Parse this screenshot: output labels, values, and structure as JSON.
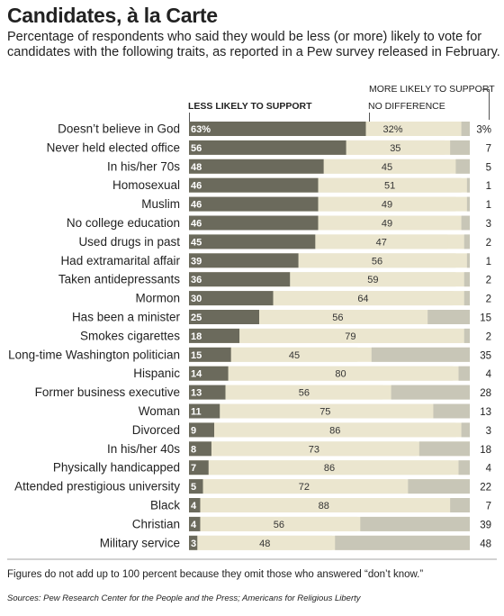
{
  "title": "Candidates, à la Carte",
  "subtitle": "Percentage of respondents who said they would be less (or more) likely to vote for candidates with the following traits, as reported in a Pew survey released in February.",
  "footnote": "Figures do not add up to 100 percent because they omit those who answered “don’t know.”",
  "sources": "Sources: Pew Research Center for the People and the Press; Americans for Religious Liberty",
  "colors": {
    "less": "#6b6a5c",
    "nodiff": "#ebe6cf",
    "more": "#c8c6b7"
  },
  "chart_data": {
    "type": "bar",
    "stacked": true,
    "orientation": "horizontal",
    "xlim": [
      0,
      100
    ],
    "legend": {
      "less": "LESS LIKELY TO SUPPORT",
      "nodiff": "NO DIFFERENCE",
      "more": "MORE LIKELY TO SUPPORT"
    },
    "rows": [
      {
        "label": "Doesn’t believe in God",
        "less": 63,
        "nodiff": 32,
        "more": 3,
        "less_label": "63%",
        "nodiff_label": "32%",
        "more_label": "3%"
      },
      {
        "label": "Never held elected office",
        "less": 56,
        "nodiff": 35,
        "more": 7,
        "less_label": "56",
        "nodiff_label": "35",
        "more_label": "7"
      },
      {
        "label": "In his/her 70s",
        "less": 48,
        "nodiff": 45,
        "more": 5,
        "less_label": "48",
        "nodiff_label": "45",
        "more_label": "5"
      },
      {
        "label": "Homosexual",
        "less": 46,
        "nodiff": 51,
        "more": 1,
        "less_label": "46",
        "nodiff_label": "51",
        "more_label": "1"
      },
      {
        "label": "Muslim",
        "less": 46,
        "nodiff": 49,
        "more": 1,
        "less_label": "46",
        "nodiff_label": "49",
        "more_label": "1"
      },
      {
        "label": "No college education",
        "less": 46,
        "nodiff": 49,
        "more": 3,
        "less_label": "46",
        "nodiff_label": "49",
        "more_label": "3"
      },
      {
        "label": "Used drugs in past",
        "less": 45,
        "nodiff": 47,
        "more": 2,
        "less_label": "45",
        "nodiff_label": "47",
        "more_label": "2"
      },
      {
        "label": "Had extramarital affair",
        "less": 39,
        "nodiff": 56,
        "more": 1,
        "less_label": "39",
        "nodiff_label": "56",
        "more_label": "1"
      },
      {
        "label": "Taken antidepressants",
        "less": 36,
        "nodiff": 59,
        "more": 2,
        "less_label": "36",
        "nodiff_label": "59",
        "more_label": "2"
      },
      {
        "label": "Mormon",
        "less": 30,
        "nodiff": 64,
        "more": 2,
        "less_label": "30",
        "nodiff_label": "64",
        "more_label": "2"
      },
      {
        "label": "Has been a minister",
        "less": 25,
        "nodiff": 56,
        "more": 15,
        "less_label": "25",
        "nodiff_label": "56",
        "more_label": "15"
      },
      {
        "label": "Smokes cigarettes",
        "less": 18,
        "nodiff": 79,
        "more": 2,
        "less_label": "18",
        "nodiff_label": "79",
        "more_label": "2"
      },
      {
        "label": "Long-time Washington politician",
        "less": 15,
        "nodiff": 45,
        "more": 35,
        "less_label": "15",
        "nodiff_label": "45",
        "more_label": "35"
      },
      {
        "label": "Hispanic",
        "less": 14,
        "nodiff": 80,
        "more": 4,
        "less_label": "14",
        "nodiff_label": "80",
        "more_label": "4"
      },
      {
        "label": "Former business executive",
        "less": 13,
        "nodiff": 56,
        "more": 28,
        "less_label": "13",
        "nodiff_label": "56",
        "more_label": "28"
      },
      {
        "label": "Woman",
        "less": 11,
        "nodiff": 75,
        "more": 13,
        "less_label": "11",
        "nodiff_label": "75",
        "more_label": "13"
      },
      {
        "label": "Divorced",
        "less": 9,
        "nodiff": 86,
        "more": 3,
        "less_label": "9",
        "nodiff_label": "86",
        "more_label": "3"
      },
      {
        "label": "In his/her 40s",
        "less": 8,
        "nodiff": 73,
        "more": 18,
        "less_label": "8",
        "nodiff_label": "73",
        "more_label": "18"
      },
      {
        "label": "Physically handicapped",
        "less": 7,
        "nodiff": 86,
        "more": 4,
        "less_label": "7",
        "nodiff_label": "86",
        "more_label": "4"
      },
      {
        "label": "Attended prestigious university",
        "less": 5,
        "nodiff": 72,
        "more": 22,
        "less_label": "5",
        "nodiff_label": "72",
        "more_label": "22"
      },
      {
        "label": "Black",
        "less": 4,
        "nodiff": 88,
        "more": 7,
        "less_label": "4",
        "nodiff_label": "88",
        "more_label": "7"
      },
      {
        "label": "Christian",
        "less": 4,
        "nodiff": 56,
        "more": 39,
        "less_label": "4",
        "nodiff_label": "56",
        "more_label": "39"
      },
      {
        "label": "Military service",
        "less": 3,
        "nodiff": 48,
        "more": 48,
        "less_label": "3",
        "nodiff_label": "48",
        "more_label": "48"
      }
    ]
  }
}
